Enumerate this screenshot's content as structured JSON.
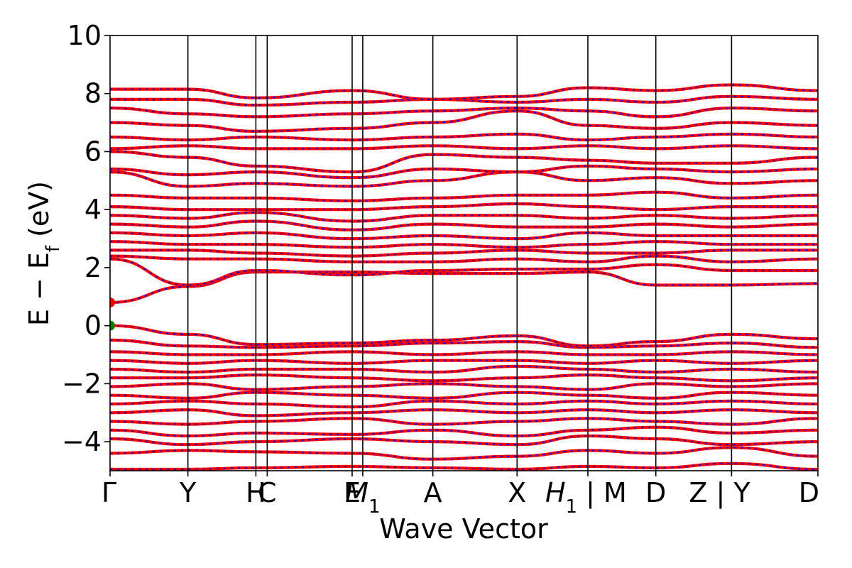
{
  "chart_data": {
    "type": "line",
    "title": "",
    "xlabel": "Wave Vector",
    "ylabel": "E − E",
    "ylabel_sub": "f",
    "ylabel_unit": "(eV)",
    "ylim": [
      -5,
      10
    ],
    "yticks": [
      -4,
      -2,
      0,
      2,
      4,
      6,
      8,
      10
    ],
    "ytick_labels": [
      "−4",
      "−2",
      "0",
      "2",
      "4",
      "6",
      "8",
      "10"
    ],
    "xlim": [
      0,
      10
    ],
    "grid": false,
    "legend": "none",
    "band_color": "#ff0000",
    "band_dash_color": "#0000ff",
    "marker_color": "#ff0000",
    "vbm_marker_color": "#008000",
    "kpoints": [
      {
        "label": "Γ",
        "x": 0.0
      },
      {
        "label": "Y",
        "x": 1.1
      },
      {
        "label": "H",
        "x": 2.06
      },
      {
        "label": "C",
        "x": 2.22
      },
      {
        "label": "E",
        "x": 3.42
      },
      {
        "label": "M",
        "sub": "1",
        "x": 3.57
      },
      {
        "label": "A",
        "x": 4.56
      },
      {
        "label": "X",
        "x": 5.75
      },
      {
        "label": "H",
        "sub": "1",
        "suffix": " | M",
        "x": 6.75
      },
      {
        "label": "D",
        "x": 7.71
      },
      {
        "label": "Z",
        "suffix": " | Y",
        "x": 8.78
      },
      {
        "label": "D",
        "x": 10.0
      }
    ],
    "vlines": [
      1.1,
      2.06,
      2.22,
      3.42,
      3.57,
      4.56,
      5.75,
      6.75,
      7.71,
      8.78
    ],
    "markers": [
      {
        "x": 0.0,
        "y": 0.8,
        "kind": "cbm"
      },
      {
        "x": 0.0,
        "y": 0.0,
        "kind": "vbm"
      }
    ],
    "bands": [
      {
        "x": [
          0,
          1.1,
          2.06,
          3.42,
          4.56,
          5.75,
          6.75,
          7.71,
          8.78,
          10
        ],
        "y": [
          -4.95,
          -4.95,
          -4.9,
          -4.85,
          -4.9,
          -4.95,
          -4.85,
          -4.9,
          -4.75,
          -4.95
        ]
      },
      {
        "x": [
          0,
          1.1,
          2.06,
          3.42,
          4.56,
          5.75,
          6.75,
          7.71,
          8.78,
          10
        ],
        "y": [
          -4.4,
          -4.3,
          -4.35,
          -4.4,
          -4.6,
          -4.5,
          -4.3,
          -4.4,
          -4.2,
          -4.5
        ]
      },
      {
        "x": [
          0,
          1.1,
          2.06,
          3.42,
          4.56,
          5.75,
          6.75,
          7.71,
          8.78,
          10
        ],
        "y": [
          -3.9,
          -4.1,
          -4.0,
          -3.9,
          -4.0,
          -4.1,
          -3.8,
          -3.9,
          -4.1,
          -4.0
        ]
      },
      {
        "x": [
          0,
          1.1,
          2.06,
          3.42,
          4.56,
          5.75,
          6.75,
          7.71,
          8.78,
          10
        ],
        "y": [
          -3.6,
          -3.8,
          -3.7,
          -3.75,
          -3.6,
          -3.8,
          -3.6,
          -3.5,
          -3.7,
          -3.6
        ]
      },
      {
        "x": [
          0,
          1.1,
          2.06,
          3.42,
          4.56,
          5.75,
          6.75,
          7.71,
          8.78,
          10
        ],
        "y": [
          -3.3,
          -3.4,
          -3.3,
          -3.2,
          -3.4,
          -3.3,
          -3.2,
          -3.3,
          -3.4,
          -3.2
        ]
      },
      {
        "x": [
          0,
          1.1,
          2.06,
          3.42,
          4.56,
          5.75,
          6.75,
          7.71,
          8.78,
          10
        ],
        "y": [
          -3.0,
          -2.9,
          -3.1,
          -3.0,
          -2.9,
          -3.0,
          -2.9,
          -3.0,
          -2.9,
          -3.0
        ]
      },
      {
        "x": [
          0,
          1.1,
          2.06,
          3.42,
          4.56,
          5.75,
          6.75,
          7.71,
          8.78,
          10
        ],
        "y": [
          -2.7,
          -2.6,
          -2.7,
          -2.8,
          -2.6,
          -2.7,
          -2.6,
          -2.7,
          -2.6,
          -2.7
        ]
      },
      {
        "x": [
          0,
          1.1,
          2.06,
          3.42,
          4.56,
          5.75,
          6.75,
          7.71,
          8.78,
          10
        ],
        "y": [
          -2.4,
          -2.5,
          -2.3,
          -2.4,
          -2.5,
          -2.3,
          -2.4,
          -2.5,
          -2.3,
          -2.4
        ]
      },
      {
        "x": [
          0,
          1.1,
          2.06,
          3.42,
          4.56,
          5.75,
          6.75,
          7.71,
          8.78,
          10
        ],
        "y": [
          -2.1,
          -2.0,
          -2.2,
          -2.1,
          -2.0,
          -2.1,
          -2.2,
          -2.0,
          -2.1,
          -2.0
        ]
      },
      {
        "x": [
          0,
          1.1,
          2.06,
          3.42,
          4.56,
          5.75,
          6.75,
          7.71,
          8.78,
          10
        ],
        "y": [
          -1.8,
          -1.8,
          -1.7,
          -1.8,
          -1.9,
          -1.8,
          -1.7,
          -1.8,
          -1.9,
          -1.8
        ]
      },
      {
        "x": [
          0,
          1.1,
          2.06,
          3.42,
          4.56,
          5.75,
          6.75,
          7.71,
          8.78,
          10
        ],
        "y": [
          -1.5,
          -1.6,
          -1.5,
          -1.5,
          -1.6,
          -1.4,
          -1.5,
          -1.6,
          -1.5,
          -1.6
        ]
      },
      {
        "x": [
          0,
          1.1,
          2.06,
          3.42,
          4.56,
          5.75,
          6.75,
          7.71,
          8.78,
          10
        ],
        "y": [
          -1.2,
          -1.3,
          -1.2,
          -1.3,
          -1.2,
          -1.2,
          -1.3,
          -1.2,
          -1.3,
          -1.2
        ]
      },
      {
        "x": [
          0,
          1.1,
          2.06,
          3.42,
          4.56,
          5.75,
          6.75,
          7.71,
          8.78,
          10
        ],
        "y": [
          -0.9,
          -1.0,
          -1.0,
          -0.9,
          -1.0,
          -0.9,
          -1.0,
          -1.0,
          -0.9,
          -1.0
        ]
      },
      {
        "x": [
          0,
          1.1,
          2.06,
          3.42,
          4.56,
          5.75,
          6.75,
          7.71,
          8.78,
          10
        ],
        "y": [
          -0.5,
          -0.7,
          -0.75,
          -0.7,
          -0.6,
          -0.55,
          -0.75,
          -0.7,
          -0.6,
          -0.75
        ]
      },
      {
        "x": [
          0,
          1.1,
          2.06,
          3.42,
          4.56,
          5.75,
          6.75,
          7.71,
          8.78,
          10
        ],
        "y": [
          0.0,
          -0.3,
          -0.65,
          -0.6,
          -0.5,
          -0.35,
          -0.7,
          -0.55,
          -0.3,
          -0.45
        ]
      },
      {
        "x": [
          0,
          1.1,
          2.06,
          3.42,
          4.56,
          5.75,
          6.75,
          7.71,
          8.78,
          10
        ],
        "y": [
          0.8,
          1.35,
          1.85,
          1.85,
          1.8,
          1.8,
          1.85,
          1.4,
          1.4,
          1.45
        ]
      },
      {
        "x": [
          0,
          1.1,
          2.06,
          3.42,
          4.56,
          5.75,
          6.75,
          7.71,
          8.78,
          10
        ],
        "y": [
          2.3,
          1.4,
          1.9,
          1.75,
          1.9,
          1.95,
          1.95,
          2.1,
          1.9,
          1.9
        ]
      },
      {
        "x": [
          0,
          1.1,
          2.06,
          3.42,
          4.56,
          5.75,
          6.75,
          7.71,
          8.78,
          10
        ],
        "y": [
          2.4,
          2.3,
          2.3,
          2.2,
          2.2,
          2.3,
          2.2,
          2.4,
          2.2,
          2.3
        ]
      },
      {
        "x": [
          0,
          1.1,
          2.06,
          3.42,
          4.56,
          5.75,
          6.75,
          7.71,
          8.78,
          10
        ],
        "y": [
          2.6,
          2.6,
          2.5,
          2.4,
          2.5,
          2.6,
          2.5,
          2.5,
          2.6,
          2.6
        ]
      },
      {
        "x": [
          0,
          1.1,
          2.06,
          3.42,
          4.56,
          5.75,
          6.75,
          7.71,
          8.78,
          10
        ],
        "y": [
          2.9,
          2.8,
          2.8,
          2.7,
          2.8,
          2.7,
          2.8,
          2.9,
          2.8,
          2.8
        ]
      },
      {
        "x": [
          0,
          1.1,
          2.06,
          3.42,
          4.56,
          5.75,
          6.75,
          7.71,
          8.78,
          10
        ],
        "y": [
          3.2,
          3.1,
          3.2,
          3.0,
          3.1,
          3.0,
          3.2,
          3.1,
          3.1,
          3.1
        ]
      },
      {
        "x": [
          0,
          1.1,
          2.06,
          3.42,
          4.56,
          5.75,
          6.75,
          7.71,
          8.78,
          10
        ],
        "y": [
          3.5,
          3.4,
          3.6,
          3.3,
          3.5,
          3.4,
          3.4,
          3.5,
          3.4,
          3.5
        ]
      },
      {
        "x": [
          0,
          1.1,
          2.06,
          3.42,
          4.56,
          5.75,
          6.75,
          7.71,
          8.78,
          10
        ],
        "y": [
          3.8,
          3.7,
          3.9,
          3.6,
          3.8,
          3.8,
          3.7,
          3.8,
          3.7,
          3.8
        ]
      },
      {
        "x": [
          0,
          1.1,
          2.06,
          3.42,
          4.56,
          5.75,
          6.75,
          7.71,
          8.78,
          10
        ],
        "y": [
          4.1,
          4.0,
          4.0,
          4.0,
          4.1,
          4.2,
          4.1,
          4.0,
          4.1,
          4.1
        ]
      },
      {
        "x": [
          0,
          1.1,
          2.06,
          3.42,
          4.56,
          5.75,
          6.75,
          7.71,
          8.78,
          10
        ],
        "y": [
          4.5,
          4.4,
          4.4,
          4.3,
          4.4,
          4.5,
          4.5,
          4.6,
          4.4,
          4.5
        ]
      },
      {
        "x": [
          0,
          1.1,
          2.06,
          3.42,
          4.56,
          5.75,
          6.75,
          7.71,
          8.78,
          10
        ],
        "y": [
          5.3,
          4.8,
          4.9,
          4.8,
          5.0,
          5.3,
          5.0,
          5.1,
          4.9,
          5.0
        ]
      },
      {
        "x": [
          0,
          1.1,
          2.06,
          3.42,
          4.56,
          5.75,
          6.75,
          7.71,
          8.78,
          10
        ],
        "y": [
          5.4,
          5.2,
          5.3,
          5.1,
          5.4,
          5.3,
          5.5,
          5.4,
          5.3,
          5.4
        ]
      },
      {
        "x": [
          0,
          1.1,
          2.06,
          3.42,
          4.56,
          5.75,
          6.75,
          7.71,
          8.78,
          10
        ],
        "y": [
          6.0,
          5.8,
          5.5,
          5.3,
          5.9,
          5.8,
          5.7,
          5.6,
          5.6,
          5.8
        ]
      },
      {
        "x": [
          0,
          1.1,
          2.06,
          3.42,
          4.56,
          5.75,
          6.75,
          7.71,
          8.78,
          10
        ],
        "y": [
          6.1,
          6.2,
          6.1,
          6.1,
          6.2,
          6.1,
          6.2,
          6.1,
          6.2,
          6.1
        ]
      },
      {
        "x": [
          0,
          1.1,
          2.06,
          3.42,
          4.56,
          5.75,
          6.75,
          7.71,
          8.78,
          10
        ],
        "y": [
          6.5,
          6.4,
          6.5,
          6.4,
          6.5,
          6.6,
          6.4,
          6.5,
          6.6,
          6.5
        ]
      },
      {
        "x": [
          0,
          1.1,
          2.06,
          3.42,
          4.56,
          5.75,
          6.75,
          7.71,
          8.78,
          10
        ],
        "y": [
          7.0,
          6.9,
          6.7,
          6.8,
          7.0,
          7.4,
          6.9,
          6.8,
          7.0,
          6.9
        ]
      },
      {
        "x": [
          0,
          1.1,
          2.06,
          3.42,
          4.56,
          5.75,
          6.75,
          7.71,
          8.78,
          10
        ],
        "y": [
          7.5,
          7.3,
          7.2,
          7.3,
          7.4,
          7.5,
          7.4,
          7.2,
          7.5,
          7.4
        ]
      },
      {
        "x": [
          0,
          1.1,
          2.06,
          3.42,
          4.56,
          5.75,
          6.75,
          7.71,
          8.78,
          10
        ],
        "y": [
          7.8,
          7.8,
          7.6,
          7.7,
          7.8,
          7.7,
          7.8,
          7.7,
          7.9,
          7.8
        ]
      },
      {
        "x": [
          0,
          1.1,
          2.06,
          3.42,
          4.56,
          5.75,
          6.75,
          7.71,
          8.78,
          10
        ],
        "y": [
          8.15,
          8.15,
          7.85,
          8.1,
          7.8,
          7.9,
          8.2,
          8.1,
          8.3,
          8.1
        ]
      }
    ]
  }
}
